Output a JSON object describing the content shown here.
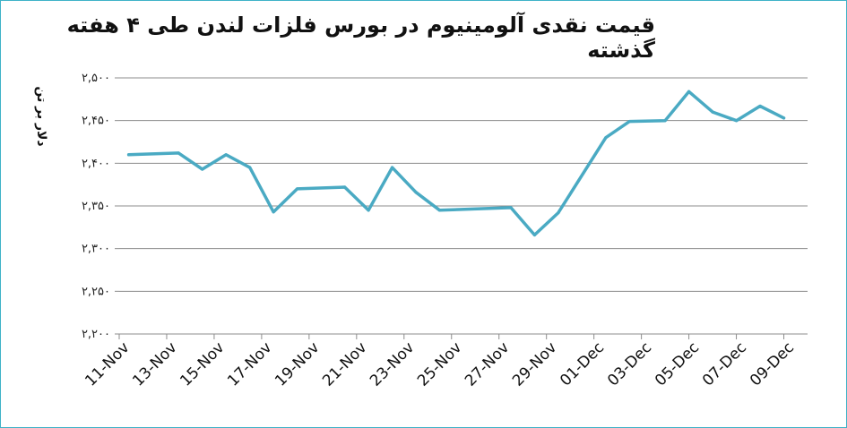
{
  "chart_data": {
    "type": "line",
    "title": "قیمت نقدی آلومینیوم در بورس فلزات لندن طی ۴ هفته گذشته",
    "ylabel": "دلار بر تن",
    "xlabel": "",
    "ylim": [
      2200,
      2500
    ],
    "yticks": [
      {
        "value": 2200,
        "label": "۲,۲۰۰"
      },
      {
        "value": 2250,
        "label": "۲,۲۵۰"
      },
      {
        "value": 2300,
        "label": "۲,۳۰۰"
      },
      {
        "value": 2350,
        "label": "۲,۳۵۰"
      },
      {
        "value": 2400,
        "label": "۲,۴۰۰"
      },
      {
        "value": 2450,
        "label": "۲,۴۵۰"
      },
      {
        "value": 2500,
        "label": "۲,۵۰۰"
      }
    ],
    "x_tick_labels": [
      "11-Nov",
      "13-Nov",
      "15-Nov",
      "17-Nov",
      "19-Nov",
      "21-Nov",
      "23-Nov",
      "25-Nov",
      "27-Nov",
      "29-Nov",
      "01-Dec",
      "03-Dec",
      "05-Dec",
      "07-Dec",
      "09-Dec"
    ],
    "x_domain": [
      0,
      29
    ],
    "grid": true,
    "series": [
      {
        "color": "#4aaac3",
        "points": [
          {
            "x": 0.4,
            "y": 2410
          },
          {
            "x": 2.5,
            "y": 2412
          },
          {
            "x": 3.5,
            "y": 2393
          },
          {
            "x": 4.5,
            "y": 2410
          },
          {
            "x": 5.5,
            "y": 2395
          },
          {
            "x": 6.5,
            "y": 2343
          },
          {
            "x": 7.5,
            "y": 2370
          },
          {
            "x": 9.5,
            "y": 2372
          },
          {
            "x": 10.5,
            "y": 2345
          },
          {
            "x": 11.5,
            "y": 2395
          },
          {
            "x": 12.5,
            "y": 2366
          },
          {
            "x": 13.5,
            "y": 2345
          },
          {
            "x": 16.5,
            "y": 2348
          },
          {
            "x": 17.5,
            "y": 2316
          },
          {
            "x": 18.5,
            "y": 2342
          },
          {
            "x": 20.5,
            "y": 2430
          },
          {
            "x": 21.5,
            "y": 2449
          },
          {
            "x": 23.0,
            "y": 2450
          },
          {
            "x": 24.0,
            "y": 2484
          },
          {
            "x": 25.0,
            "y": 2460
          },
          {
            "x": 26.0,
            "y": 2450
          },
          {
            "x": 27.0,
            "y": 2467
          },
          {
            "x": 28.0,
            "y": 2453
          }
        ]
      }
    ]
  }
}
